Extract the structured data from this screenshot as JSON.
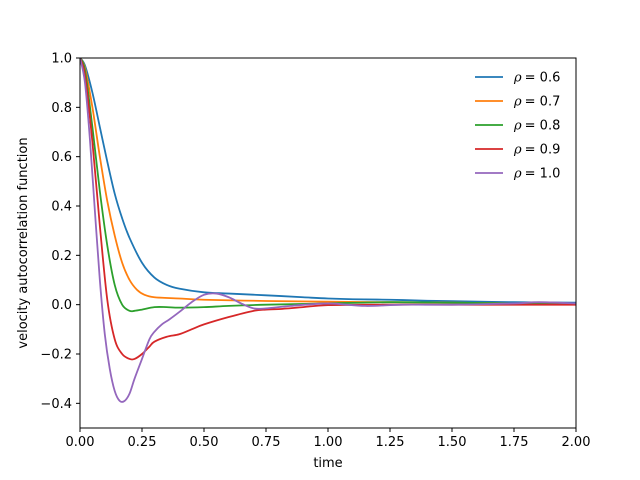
{
  "chart_data": {
    "type": "line",
    "xlabel": "time",
    "ylabel": "velocity autocorrelation function",
    "xlim": [
      0,
      2
    ],
    "ylim": [
      -0.5,
      1.0
    ],
    "xticks": [
      "0.00",
      "0.25",
      "0.50",
      "0.75",
      "1.00",
      "1.25",
      "1.50",
      "1.75",
      "2.00"
    ],
    "yticks": [
      "−0.4",
      "−0.2",
      "0.0",
      "0.2",
      "0.4",
      "0.6",
      "0.8",
      "1.0"
    ],
    "grid": false,
    "legend": "top-right",
    "series": [
      {
        "name": "ρ = 0.6",
        "legend_symbol": "ρ",
        "legend_value": "= 0.6",
        "color": "#1f77b4",
        "x": [
          0,
          0.02,
          0.05,
          0.08,
          0.11,
          0.14,
          0.17,
          0.2,
          0.25,
          0.3,
          0.35,
          0.4,
          0.5,
          0.6,
          0.75,
          0.9,
          1.0,
          1.1,
          1.25,
          1.4,
          1.5,
          1.75,
          2.0
        ],
        "y": [
          1.0,
          0.97,
          0.86,
          0.72,
          0.58,
          0.45,
          0.35,
          0.27,
          0.17,
          0.11,
          0.08,
          0.065,
          0.05,
          0.045,
          0.038,
          0.03,
          0.025,
          0.022,
          0.02,
          0.016,
          0.014,
          0.01,
          0.008
        ]
      },
      {
        "name": "ρ = 0.7",
        "legend_symbol": "ρ",
        "legend_value": "= 0.7",
        "color": "#ff7f0e",
        "x": [
          0,
          0.02,
          0.05,
          0.08,
          0.11,
          0.14,
          0.17,
          0.2,
          0.23,
          0.26,
          0.3,
          0.4,
          0.5,
          0.75,
          1.0,
          1.25,
          1.5,
          1.75,
          2.0
        ],
        "y": [
          1.0,
          0.96,
          0.8,
          0.6,
          0.42,
          0.28,
          0.17,
          0.1,
          0.06,
          0.04,
          0.03,
          0.025,
          0.02,
          0.015,
          0.012,
          0.01,
          0.008,
          0.005,
          0.003
        ]
      },
      {
        "name": "ρ = 0.8",
        "legend_symbol": "ρ",
        "legend_value": "= 0.8",
        "color": "#2ca02c",
        "x": [
          0,
          0.02,
          0.05,
          0.08,
          0.11,
          0.14,
          0.17,
          0.2,
          0.22,
          0.25,
          0.3,
          0.35,
          0.4,
          0.5,
          0.6,
          0.75,
          1.0,
          1.25,
          1.5,
          1.75,
          2.0
        ],
        "y": [
          1.0,
          0.95,
          0.72,
          0.46,
          0.24,
          0.08,
          0.0,
          -0.025,
          -0.025,
          -0.02,
          -0.01,
          -0.01,
          -0.012,
          -0.01,
          -0.005,
          0.0,
          0.005,
          0.01,
          0.008,
          0.005,
          0.003
        ]
      },
      {
        "name": "ρ = 0.9",
        "legend_symbol": "ρ",
        "legend_value": "= 0.9",
        "color": "#d62728",
        "x": [
          0,
          0.02,
          0.05,
          0.08,
          0.11,
          0.14,
          0.17,
          0.2,
          0.22,
          0.25,
          0.28,
          0.3,
          0.35,
          0.4,
          0.45,
          0.5,
          0.6,
          0.7,
          0.75,
          0.8,
          0.9,
          1.0,
          1.25,
          1.5,
          1.75,
          2.0
        ],
        "y": [
          1.0,
          0.93,
          0.66,
          0.32,
          0.02,
          -0.14,
          -0.2,
          -0.22,
          -0.22,
          -0.2,
          -0.17,
          -0.15,
          -0.13,
          -0.12,
          -0.1,
          -0.08,
          -0.05,
          -0.025,
          -0.02,
          -0.018,
          -0.01,
          -0.002,
          0.0,
          0.0,
          0.0,
          0.0
        ]
      },
      {
        "name": "ρ = 1.0",
        "legend_symbol": "ρ",
        "legend_value": "= 1.0",
        "color": "#9467bd",
        "x": [
          0,
          0.02,
          0.04,
          0.06,
          0.08,
          0.1,
          0.12,
          0.14,
          0.16,
          0.18,
          0.2,
          0.22,
          0.25,
          0.28,
          0.3,
          0.33,
          0.36,
          0.4,
          0.45,
          0.5,
          0.55,
          0.6,
          0.65,
          0.7,
          0.75,
          0.85,
          1.0,
          1.15,
          1.3,
          1.5,
          1.75,
          1.85,
          2.0
        ],
        "y": [
          1.0,
          0.9,
          0.67,
          0.38,
          0.1,
          -0.12,
          -0.26,
          -0.35,
          -0.39,
          -0.39,
          -0.36,
          -0.3,
          -0.22,
          -0.14,
          -0.11,
          -0.08,
          -0.06,
          -0.03,
          0.01,
          0.04,
          0.045,
          0.03,
          0.005,
          -0.015,
          -0.015,
          -0.005,
          0.005,
          -0.005,
          0.0,
          0.0,
          0.005,
          0.01,
          0.005
        ]
      }
    ]
  }
}
